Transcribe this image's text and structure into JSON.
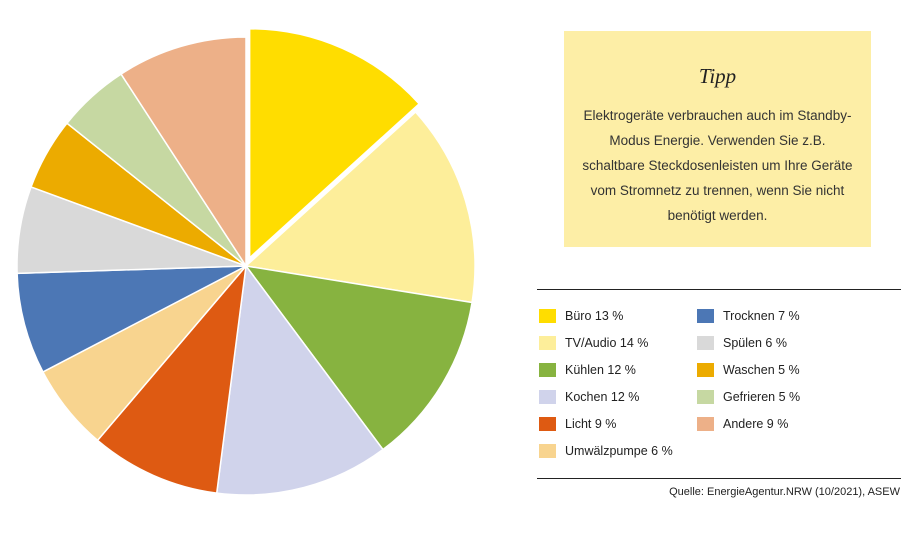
{
  "tip": {
    "title": "Tipp",
    "text": "Elektrogeräte verbrauchen auch im Standby-Modus Energie. Verwenden Sie z.B. schaltbare Steckdosenleisten um Ihre Geräte vom Stromnetz zu trennen, wenn Sie nicht benötigt werden."
  },
  "source": "Quelle: EnergieAgentur.NRW (10/2021), ASEW",
  "chart_data": {
    "type": "pie",
    "unit": "%",
    "exploded": "Büro",
    "slices": [
      {
        "label": "Büro",
        "value": 13,
        "color": "#ffdd00",
        "legend": "Büro 13 %"
      },
      {
        "label": "TV/Audio",
        "value": 14,
        "color": "#fdee9a",
        "legend": "TV/Audio 14 %"
      },
      {
        "label": "Kühlen",
        "value": 12,
        "color": "#87b340",
        "legend": "Kühlen 12 %"
      },
      {
        "label": "Kochen",
        "value": 12,
        "color": "#d0d3eb",
        "legend": "Kochen 12 %"
      },
      {
        "label": "Licht",
        "value": 9,
        "color": "#de5a12",
        "legend": "Licht 9 %"
      },
      {
        "label": "Umwälzpumpe",
        "value": 6,
        "color": "#f8d48f",
        "legend": "Umwälzpumpe 6 %"
      },
      {
        "label": "Trocknen",
        "value": 7,
        "color": "#4c77b5",
        "legend": "Trocknen 7 %"
      },
      {
        "label": "Spülen",
        "value": 6,
        "color": "#d9d9d9",
        "legend": "Spülen 6 %"
      },
      {
        "label": "Waschen",
        "value": 5,
        "color": "#ecab00",
        "legend": "Waschen 5 %"
      },
      {
        "label": "Gefrieren",
        "value": 5,
        "color": "#c6d8a2",
        "legend": "Gefrieren 5 %"
      },
      {
        "label": "Andere",
        "value": 9,
        "color": "#edb088",
        "legend": "Andere 9 %"
      }
    ]
  }
}
